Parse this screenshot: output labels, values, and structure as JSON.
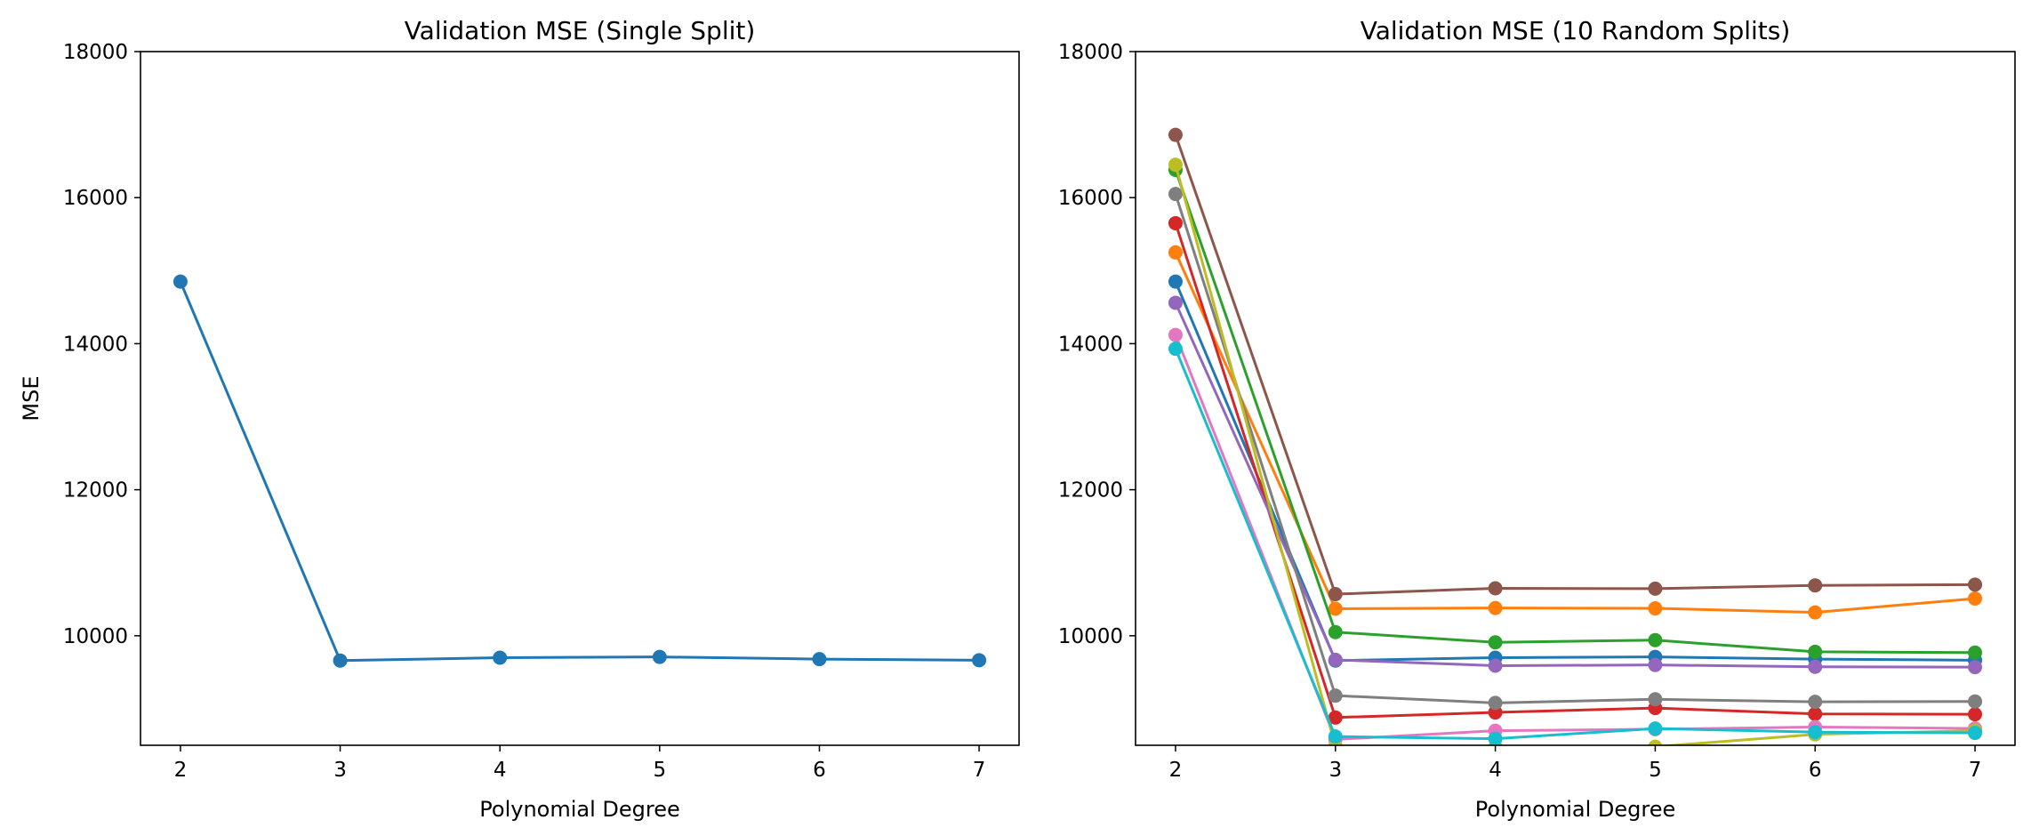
{
  "chart_data": [
    {
      "type": "line",
      "title": "Validation MSE (Single Split)",
      "xlabel": "Polynomial Degree",
      "ylabel": "MSE",
      "x": [
        2,
        3,
        4,
        5,
        6,
        7
      ],
      "xticks": [
        "2",
        "3",
        "4",
        "5",
        "6",
        "7"
      ],
      "yticks": [
        "10000",
        "12000",
        "14000",
        "16000",
        "18000"
      ],
      "xlim": [
        1.75,
        7.25
      ],
      "ylim": [
        8500,
        18000
      ],
      "grid": false,
      "series": [
        {
          "values": [
            14850,
            9660,
            9700,
            9710,
            9680,
            9665
          ],
          "color": "#1f77b4"
        }
      ]
    },
    {
      "type": "line",
      "title": "Validation MSE (10 Random Splits)",
      "xlabel": "Polynomial Degree",
      "ylabel": "",
      "x": [
        2,
        3,
        4,
        5,
        6,
        7
      ],
      "xticks": [
        "2",
        "3",
        "4",
        "5",
        "6",
        "7"
      ],
      "yticks": [
        "10000",
        "12000",
        "14000",
        "16000",
        "18000"
      ],
      "xlim": [
        1.75,
        7.25
      ],
      "ylim": [
        8500,
        18000
      ],
      "grid": false,
      "series": [
        {
          "values": [
            14850,
            9660,
            9700,
            9710,
            9680,
            9665
          ],
          "color": "#1f77b4"
        },
        {
          "values": [
            15250,
            10370,
            10380,
            10375,
            10320,
            10510
          ],
          "color": "#ff7f0e"
        },
        {
          "values": [
            16380,
            10050,
            9910,
            9940,
            9780,
            9770
          ],
          "color": "#2ca02c"
        },
        {
          "values": [
            15650,
            8880,
            8950,
            9010,
            8930,
            8925
          ],
          "color": "#d62728"
        },
        {
          "values": [
            14560,
            9670,
            9590,
            9600,
            9575,
            9570
          ],
          "color": "#9467bd"
        },
        {
          "values": [
            16860,
            10570,
            10650,
            10645,
            10690,
            10700
          ],
          "color": "#8c564b"
        },
        {
          "values": [
            14120,
            8580,
            8700,
            8720,
            8750,
            8730
          ],
          "color": "#e377c2"
        },
        {
          "values": [
            16050,
            9180,
            9080,
            9130,
            9095,
            9100
          ],
          "color": "#7f7f7f"
        },
        {
          "values": [
            16450,
            8490,
            8480,
            8480,
            8650,
            8700
          ],
          "color": "#bcbd22"
        },
        {
          "values": [
            13930,
            8620,
            8590,
            8730,
            8680,
            8670
          ],
          "color": "#17becf"
        }
      ]
    }
  ]
}
